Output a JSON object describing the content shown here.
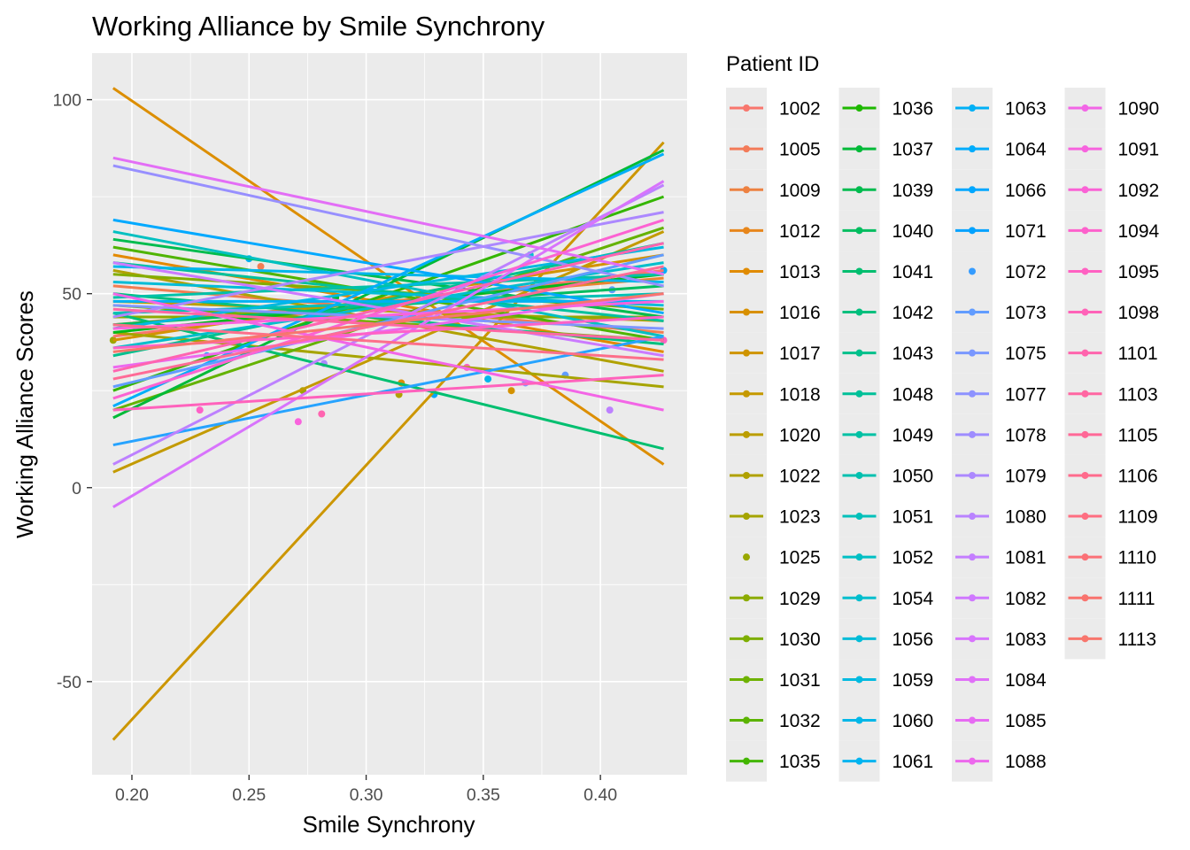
{
  "chart_data": {
    "type": "line",
    "title": "Working Alliance by Smile Synchrony",
    "xlabel": "Smile Synchrony",
    "ylabel": "Working Alliance Scores",
    "xlim": [
      0.183,
      0.437
    ],
    "ylim": [
      -74,
      112
    ],
    "x_ticks": [
      "0.20",
      "0.25",
      "0.30",
      "0.35",
      "0.40"
    ],
    "y_ticks": [
      "-50",
      "0",
      "50",
      "100"
    ],
    "grid": true,
    "panel_background": "#ebebeb",
    "legend": {
      "title": "Patient ID",
      "position": "right",
      "columns": 4
    },
    "x_range": [
      0.192,
      0.427
    ],
    "series": [
      {
        "name": "1002",
        "color": "#F8766D",
        "y": [
          39,
          56
        ]
      },
      {
        "name": "1005",
        "color": "#F27D52",
        "y": [
          52,
          40
        ]
      },
      {
        "name": "1009",
        "color": "#EA8331",
        "y": [
          42,
          54
        ]
      },
      {
        "name": "1012",
        "color": "#E38900",
        "y": [
          60,
          35
        ]
      },
      {
        "name": "1013",
        "color": "#DC8E00",
        "y": [
          103,
          6
        ]
      },
      {
        "name": "1016",
        "color": "#D49200",
        "y": [
          38,
          60
        ]
      },
      {
        "name": "1017",
        "color": "#CC9600",
        "y": [
          -65,
          89
        ]
      },
      {
        "name": "1018",
        "color": "#C39A00",
        "y": [
          4,
          66
        ]
      },
      {
        "name": "1020",
        "color": "#BA9E00",
        "y": [
          48,
          43
        ]
      },
      {
        "name": "1022",
        "color": "#B0A100",
        "y": [
          56,
          30
        ]
      },
      {
        "name": "1023",
        "color": "#A6A400",
        "y": [
          40,
          26
        ]
      },
      {
        "name": "1025",
        "color": "#9BA700",
        "points": true,
        "y": [
          38,
          38
        ]
      },
      {
        "name": "1029",
        "color": "#8FAA00",
        "y": [
          44,
          44
        ]
      },
      {
        "name": "1030",
        "color": "#83AD00",
        "y": [
          55,
          46
        ]
      },
      {
        "name": "1031",
        "color": "#74B000",
        "y": [
          47,
          38
        ]
      },
      {
        "name": "1032",
        "color": "#64B200",
        "y": [
          20,
          67
        ]
      },
      {
        "name": "1035",
        "color": "#4FB400",
        "y": [
          62,
          38
        ]
      },
      {
        "name": "1036",
        "color": "#34B600",
        "y": [
          25,
          75
        ]
      },
      {
        "name": "1037",
        "color": "#00B81B",
        "y": [
          40,
          55
        ]
      },
      {
        "name": "1039",
        "color": "#00BA38",
        "y": [
          18,
          87
        ]
      },
      {
        "name": "1040",
        "color": "#00BC4E",
        "y": [
          64,
          44
        ]
      },
      {
        "name": "1041",
        "color": "#00BD5F",
        "y": [
          42,
          52
        ]
      },
      {
        "name": "1042",
        "color": "#00BF70",
        "y": [
          45,
          10
        ]
      },
      {
        "name": "1043",
        "color": "#00C080",
        "y": [
          50,
          37
        ]
      },
      {
        "name": "1048",
        "color": "#00C08E",
        "y": [
          34,
          63
        ]
      },
      {
        "name": "1049",
        "color": "#00C19C",
        "y": [
          58,
          43
        ]
      },
      {
        "name": "1050",
        "color": "#00C1A9",
        "y": [
          49,
          55
        ]
      },
      {
        "name": "1051",
        "color": "#00C0B5",
        "y": [
          45,
          50
        ]
      },
      {
        "name": "1052",
        "color": "#00C0C1",
        "y": [
          66,
          39
        ]
      },
      {
        "name": "1054",
        "color": "#00BECC",
        "y": [
          36,
          58
        ]
      },
      {
        "name": "1056",
        "color": "#00BCD7",
        "y": [
          53,
          47
        ]
      },
      {
        "name": "1059",
        "color": "#00B9E1",
        "y": [
          41,
          62
        ]
      },
      {
        "name": "1060",
        "color": "#00B6EB",
        "y": [
          57,
          53
        ]
      },
      {
        "name": "1061",
        "color": "#00B2F3",
        "y": [
          48,
          48
        ]
      },
      {
        "name": "1063",
        "color": "#00AEFA",
        "y": [
          21,
          86
        ]
      },
      {
        "name": "1064",
        "color": "#00A9FF",
        "y": [
          69,
          45
        ]
      },
      {
        "name": "1066",
        "color": "#26A3FF",
        "y": [
          11,
          39
        ]
      },
      {
        "name": "1071",
        "color": "#619CFF",
        "y": [
          26,
          60
        ]
      },
      {
        "name": "1072",
        "color": "#7F96FF",
        "y": [
          47,
          41
        ]
      },
      {
        "name": "1073",
        "color": "#978FFF",
        "y": [
          83,
          52
        ]
      },
      {
        "name": "1075",
        "color": "#AC88FF",
        "y": [
          44,
          71
        ]
      },
      {
        "name": "1077",
        "color": "#BD81FF",
        "y": [
          6,
          78
        ]
      },
      {
        "name": "1078",
        "color": "#CB7AFF",
        "y": [
          58,
          34
        ]
      },
      {
        "name": "1079",
        "color": "#D873FC",
        "y": [
          -5,
          79
        ]
      },
      {
        "name": "1080",
        "color": "#E36EF6",
        "y": [
          85,
          55
        ]
      },
      {
        "name": "1081",
        "color": "#EC69EF",
        "y": [
          31,
          50
        ]
      },
      {
        "name": "1082",
        "color": "#F365E6",
        "y": [
          50,
          20
        ]
      },
      {
        "name": "1083",
        "color": "#F963DD",
        "y": [
          41,
          48
        ]
      },
      {
        "name": "1084",
        "color": "#FC62D2",
        "y": [
          23,
          69
        ]
      },
      {
        "name": "1085",
        "color": "#FF61C7",
        "y": [
          36,
          44
        ]
      },
      {
        "name": "1088",
        "color": "#FF62BC",
        "y": [
          20,
          29
        ]
      },
      {
        "name": "1090",
        "color": "#FF64B0",
        "y": [
          30,
          63
        ]
      },
      {
        "name": "1091",
        "color": "#FF67A4",
        "y": [
          46,
          38
        ]
      },
      {
        "name": "1092",
        "color": "#FF6B97",
        "y": [
          28,
          57
        ]
      },
      {
        "name": "1094",
        "color": "#FD6F8A",
        "y": [
          42,
          33
        ]
      },
      {
        "name": "1095",
        "color": "#F8766D",
        "y": [
          35,
          50
        ]
      }
    ],
    "scatter_points": [
      {
        "x": 0.192,
        "y": 38,
        "color": "#9BA700"
      },
      {
        "x": 0.229,
        "y": 20,
        "color": "#FF61C7"
      },
      {
        "x": 0.232,
        "y": 34,
        "color": "#26A3FF"
      },
      {
        "x": 0.25,
        "y": 59,
        "color": "#00B2F3"
      },
      {
        "x": 0.255,
        "y": 57,
        "color": "#F27D52"
      },
      {
        "x": 0.263,
        "y": 44,
        "color": "#00C08E"
      },
      {
        "x": 0.268,
        "y": 45,
        "color": "#64B200"
      },
      {
        "x": 0.271,
        "y": 17,
        "color": "#F963DD"
      },
      {
        "x": 0.273,
        "y": 25,
        "color": "#9BA700"
      },
      {
        "x": 0.281,
        "y": 19,
        "color": "#FF64B0"
      },
      {
        "x": 0.282,
        "y": 32,
        "color": "#AC88FF"
      },
      {
        "x": 0.287,
        "y": 49,
        "color": "#00BA38"
      },
      {
        "x": 0.314,
        "y": 24,
        "color": "#B0A100"
      },
      {
        "x": 0.315,
        "y": 27,
        "color": "#DC8E00"
      },
      {
        "x": 0.329,
        "y": 24,
        "color": "#00A9FF"
      },
      {
        "x": 0.343,
        "y": 31,
        "color": "#FF62BC"
      },
      {
        "x": 0.352,
        "y": 28,
        "color": "#00B6EB"
      },
      {
        "x": 0.362,
        "y": 25,
        "color": "#D49200"
      },
      {
        "x": 0.368,
        "y": 27,
        "color": "#7F96FF"
      },
      {
        "x": 0.37,
        "y": 60,
        "color": "#00BECC"
      },
      {
        "x": 0.385,
        "y": 29,
        "color": "#619CFF"
      },
      {
        "x": 0.404,
        "y": 20,
        "color": "#BD81FF"
      },
      {
        "x": 0.405,
        "y": 51,
        "color": "#619CFF"
      },
      {
        "x": 0.427,
        "y": 56,
        "color": "#00AEFA"
      },
      {
        "x": 0.427,
        "y": 38,
        "color": "#FF61C7"
      }
    ]
  },
  "legend_items": [
    {
      "name": "1002",
      "color": "#F8766D",
      "key": "line"
    },
    {
      "name": "1005",
      "color": "#F37B59",
      "key": "line"
    },
    {
      "name": "1009",
      "color": "#ED8141",
      "key": "line"
    },
    {
      "name": "1012",
      "color": "#E7861B",
      "key": "line"
    },
    {
      "name": "1013",
      "color": "#E08B00",
      "key": "line"
    },
    {
      "name": "1016",
      "color": "#D89000",
      "key": "line"
    },
    {
      "name": "1017",
      "color": "#CF9400",
      "key": "line"
    },
    {
      "name": "1018",
      "color": "#C59900",
      "key": "line"
    },
    {
      "name": "1020",
      "color": "#BB9D00",
      "key": "line"
    },
    {
      "name": "1022",
      "color": "#B0A100",
      "key": "line"
    },
    {
      "name": "1023",
      "color": "#A5A400",
      "key": "line"
    },
    {
      "name": "1025",
      "color": "#99A800",
      "key": "point"
    },
    {
      "name": "1029",
      "color": "#8CAB00",
      "key": "line"
    },
    {
      "name": "1030",
      "color": "#7EAE00",
      "key": "line"
    },
    {
      "name": "1031",
      "color": "#6EB200",
      "key": "line"
    },
    {
      "name": "1032",
      "color": "#5BB300",
      "key": "line"
    },
    {
      "name": "1035",
      "color": "#43B600",
      "key": "line"
    },
    {
      "name": "1036",
      "color": "#1DB800",
      "key": "line"
    },
    {
      "name": "1037",
      "color": "#00BA38",
      "key": "line"
    },
    {
      "name": "1039",
      "color": "#00BB4E",
      "key": "line"
    },
    {
      "name": "1040",
      "color": "#00BD5F",
      "key": "line"
    },
    {
      "name": "1041",
      "color": "#00BE6F",
      "key": "line"
    },
    {
      "name": "1042",
      "color": "#00BF7D",
      "key": "line"
    },
    {
      "name": "1043",
      "color": "#00C08B",
      "key": "line"
    },
    {
      "name": "1048",
      "color": "#00C098",
      "key": "line"
    },
    {
      "name": "1049",
      "color": "#00C1A4",
      "key": "line"
    },
    {
      "name": "1050",
      "color": "#00C0AF",
      "key": "line"
    },
    {
      "name": "1051",
      "color": "#00C0BA",
      "key": "line"
    },
    {
      "name": "1052",
      "color": "#00BFC4",
      "key": "line"
    },
    {
      "name": "1054",
      "color": "#00BECE",
      "key": "line"
    },
    {
      "name": "1056",
      "color": "#00BCD8",
      "key": "line"
    },
    {
      "name": "1059",
      "color": "#00BAE0",
      "key": "line"
    },
    {
      "name": "1060",
      "color": "#00B7E8",
      "key": "line"
    },
    {
      "name": "1061",
      "color": "#00B4F0",
      "key": "line"
    },
    {
      "name": "1063",
      "color": "#00B0F6",
      "key": "line"
    },
    {
      "name": "1064",
      "color": "#00ACFC",
      "key": "line"
    },
    {
      "name": "1066",
      "color": "#00A7FF",
      "key": "line"
    },
    {
      "name": "1071",
      "color": "#00A2FF",
      "key": "line"
    },
    {
      "name": "1072",
      "color": "#359CFF",
      "key": "point"
    },
    {
      "name": "1073",
      "color": "#619CFF",
      "key": "line"
    },
    {
      "name": "1075",
      "color": "#7997FF",
      "key": "line"
    },
    {
      "name": "1077",
      "color": "#8D92FF",
      "key": "line"
    },
    {
      "name": "1078",
      "color": "#9E8CFF",
      "key": "line"
    },
    {
      "name": "1079",
      "color": "#AC88FF",
      "key": "line"
    },
    {
      "name": "1080",
      "color": "#B983FF",
      "key": "line"
    },
    {
      "name": "1081",
      "color": "#C47EFF",
      "key": "line"
    },
    {
      "name": "1082",
      "color": "#CF78FF",
      "key": "line"
    },
    {
      "name": "1083",
      "color": "#D874FD",
      "key": "line"
    },
    {
      "name": "1084",
      "color": "#E070F8",
      "key": "line"
    },
    {
      "name": "1085",
      "color": "#E76BF3",
      "key": "line"
    },
    {
      "name": "1088",
      "color": "#ED68ED",
      "key": "line"
    },
    {
      "name": "1090",
      "color": "#F265E6",
      "key": "line"
    },
    {
      "name": "1091",
      "color": "#F763DE",
      "key": "line"
    },
    {
      "name": "1092",
      "color": "#FA62D5",
      "key": "line"
    },
    {
      "name": "1094",
      "color": "#FD61CC",
      "key": "line"
    },
    {
      "name": "1095",
      "color": "#FF61C2",
      "key": "line"
    },
    {
      "name": "1098",
      "color": "#FF62B8",
      "key": "line"
    },
    {
      "name": "1101",
      "color": "#FF64AD",
      "key": "line"
    },
    {
      "name": "1103",
      "color": "#FF66A2",
      "key": "line"
    },
    {
      "name": "1105",
      "color": "#FF6897",
      "key": "line"
    },
    {
      "name": "1106",
      "color": "#FF6B8C",
      "key": "line"
    },
    {
      "name": "1109",
      "color": "#FE6E81",
      "key": "line"
    },
    {
      "name": "1110",
      "color": "#FB7177",
      "key": "line"
    },
    {
      "name": "1111",
      "color": "#F9736E",
      "key": "line"
    },
    {
      "name": "1113",
      "color": "#F8766D",
      "key": "line"
    }
  ]
}
